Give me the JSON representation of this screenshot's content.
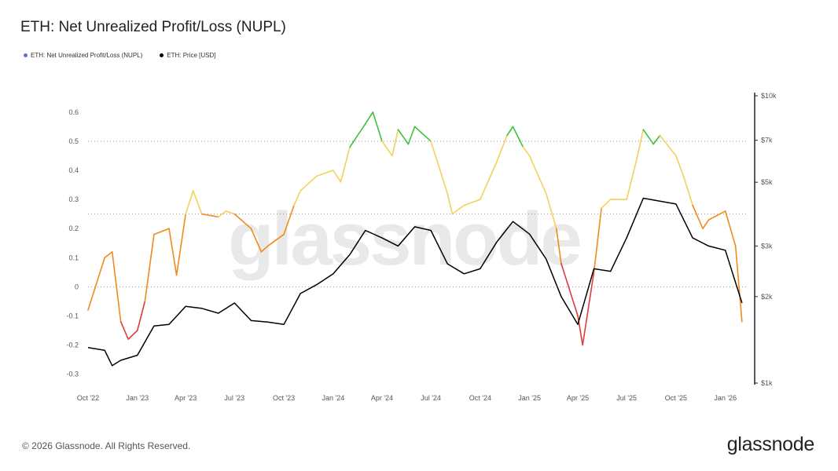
{
  "title": "ETH: Net Unrealized Profit/Loss (NUPL)",
  "legend": [
    {
      "name": "ETH: Net Unrealized Profit/Loss (NUPL)",
      "color": "#5b6fd6"
    },
    {
      "name": "ETH: Price [USD]",
      "color": "#000000"
    }
  ],
  "watermark": "glassnode",
  "footer": "© 2026 Glassnode. All Rights Reserved.",
  "brand": "glassnode",
  "colors": {
    "red": "#e03a3a",
    "orange": "#f08a1e",
    "yellow": "#f2d25a",
    "green": "#3cc43c",
    "price": "#000000"
  },
  "chart_data": {
    "type": "line",
    "x_range": [
      "2022-10",
      "2026-02"
    ],
    "x_ticks": [
      "Oct '22",
      "Jan '23",
      "Apr '23",
      "Jul '23",
      "Oct '23",
      "Jan '24",
      "Apr '24",
      "Jul '24",
      "Oct '24",
      "Jan '25",
      "Apr '25",
      "Jul '25",
      "Oct '25",
      "Jan '26"
    ],
    "y_left": {
      "label": "",
      "range": [
        -0.32,
        0.64
      ],
      "ticks": [
        "0.6",
        "0.5",
        "0.4",
        "0.3",
        "0.2",
        "0.1",
        "0",
        "-0.1",
        "-0.2",
        "-0.3"
      ]
    },
    "y_right": {
      "label": "",
      "scale": "log",
      "range": [
        1000,
        10000
      ],
      "ticks": [
        "$10k",
        "$7k",
        "$5k",
        "$3k",
        "$2k",
        "$1k"
      ]
    },
    "dotted_gridlines": [
      0.5,
      0.25,
      0
    ],
    "series": [
      {
        "name": "ETH: Net Unrealized Profit/Loss (NUPL)",
        "axis": "left",
        "x": [
          "2022-10",
          "2022-11",
          "2022-11-15",
          "2022-12",
          "2022-12-15",
          "2023-01",
          "2023-01-15",
          "2023-02",
          "2023-03",
          "2023-03-15",
          "2023-04",
          "2023-04-15",
          "2023-05",
          "2023-06",
          "2023-06-15",
          "2023-07",
          "2023-08",
          "2023-08-20",
          "2023-09",
          "2023-10",
          "2023-10-20",
          "2023-11",
          "2023-12",
          "2024-01",
          "2024-01-15",
          "2024-02",
          "2024-03",
          "2024-03-15",
          "2024-04",
          "2024-04-20",
          "2024-05",
          "2024-05-20",
          "2024-06",
          "2024-07",
          "2024-08",
          "2024-08-10",
          "2024-09",
          "2024-10",
          "2024-11",
          "2024-11-20",
          "2024-12",
          "2024-12-20",
          "2025-01",
          "2025-02",
          "2025-02-20",
          "2025-03",
          "2025-04",
          "2025-04-10",
          "2025-05",
          "2025-05-15",
          "2025-06",
          "2025-07",
          "2025-07-20",
          "2025-08",
          "2025-08-20",
          "2025-09",
          "2025-10",
          "2025-10-15",
          "2025-11",
          "2025-11-20",
          "2025-12",
          "2026-01",
          "2026-01-20",
          "2026-02"
        ],
        "y": [
          -0.08,
          0.1,
          0.12,
          -0.12,
          -0.18,
          -0.15,
          -0.05,
          0.18,
          0.2,
          0.04,
          0.25,
          0.33,
          0.25,
          0.24,
          0.26,
          0.25,
          0.2,
          0.12,
          0.14,
          0.18,
          0.28,
          0.33,
          0.38,
          0.4,
          0.36,
          0.48,
          0.56,
          0.6,
          0.5,
          0.45,
          0.54,
          0.49,
          0.55,
          0.5,
          0.32,
          0.25,
          0.28,
          0.3,
          0.43,
          0.52,
          0.55,
          0.48,
          0.45,
          0.32,
          0.2,
          0.08,
          -0.1,
          -0.2,
          0.05,
          0.27,
          0.3,
          0.3,
          0.44,
          0.54,
          0.49,
          0.52,
          0.45,
          0.38,
          0.28,
          0.2,
          0.23,
          0.26,
          0.14,
          -0.12
        ]
      },
      {
        "name": "ETH: Price [USD]",
        "axis": "right",
        "x": [
          "2022-10",
          "2022-11",
          "2022-11-15",
          "2022-12",
          "2023-01",
          "2023-02",
          "2023-03",
          "2023-04",
          "2023-05",
          "2023-06",
          "2023-07",
          "2023-08",
          "2023-09",
          "2023-10",
          "2023-11",
          "2023-12",
          "2024-01",
          "2024-02",
          "2024-03",
          "2024-04",
          "2024-05",
          "2024-06",
          "2024-07",
          "2024-08",
          "2024-09",
          "2024-10",
          "2024-11",
          "2024-12",
          "2025-01",
          "2025-02",
          "2025-03",
          "2025-04",
          "2025-05",
          "2025-06",
          "2025-07",
          "2025-08",
          "2025-09",
          "2025-10",
          "2025-11",
          "2025-12",
          "2026-01",
          "2026-02"
        ],
        "y": [
          1330,
          1300,
          1150,
          1200,
          1250,
          1580,
          1600,
          1850,
          1820,
          1750,
          1900,
          1650,
          1630,
          1600,
          2050,
          2200,
          2400,
          2800,
          3400,
          3200,
          3000,
          3500,
          3400,
          2600,
          2400,
          2500,
          3100,
          3650,
          3300,
          2700,
          2000,
          1600,
          2500,
          2450,
          3200,
          4400,
          4300,
          4200,
          3200,
          3000,
          2900,
          1900
        ]
      }
    ]
  }
}
